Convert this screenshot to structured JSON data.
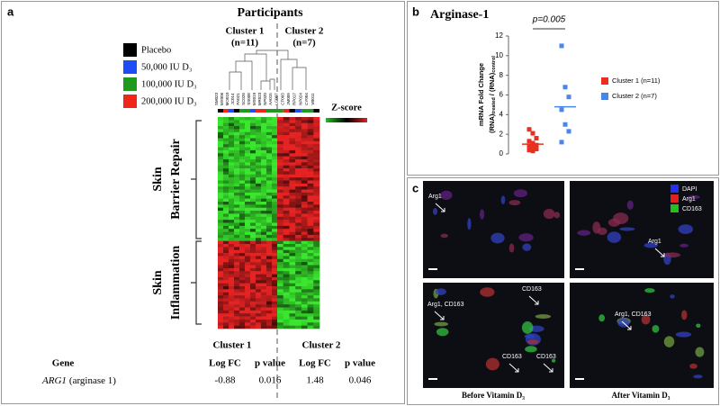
{
  "panel_a": {
    "label": "a",
    "title": "Participants",
    "legend": [
      {
        "name": "Placebo",
        "color": "#000000"
      },
      {
        "name": "50,000 IU D₃",
        "color": "#1f4df5"
      },
      {
        "name": "100,000 IU D₃",
        "color": "#1f9a1f"
      },
      {
        "name": "200,000 IU D₃",
        "color": "#f0261b"
      }
    ],
    "clusters": [
      {
        "name": "Cluster 1",
        "n": "(n=11)"
      },
      {
        "name": "Cluster 2",
        "n": "(n=7)"
      }
    ],
    "sample_ids": [
      [
        "SM023",
        "MX006",
        "MO010",
        "JC014",
        "PA021",
        "SC026",
        "SS008",
        "MS019",
        "MR023",
        "NP020",
        "AA015"
      ],
      [
        "LC007",
        "CT003",
        "JM009",
        "RP017",
        "NP024",
        "CY004",
        "VB011"
      ]
    ],
    "zscore": "Z-score",
    "row_groups": [
      [
        "Skin",
        "Barrier Repair"
      ],
      [
        "Skin",
        "Inflammation"
      ]
    ],
    "table": {
      "clusters": [
        "Cluster 1",
        "Cluster 2"
      ],
      "columns": [
        "Gene",
        "Log FC",
        "p value",
        "Log FC",
        "p value"
      ],
      "rows": [
        {
          "gene": "ARG1",
          "gene_name": "(arginase 1)",
          "values": [
            -0.88,
            0.016,
            1.48,
            0.046
          ]
        }
      ]
    }
  },
  "panel_b": {
    "label": "b",
    "chart_data": {
      "type": "strip",
      "title": "Arginase-1",
      "annotation": "p=0.005",
      "y_label": [
        "mRNA Fold Change",
        "(RNA)",
        "treated",
        " / (RNA)",
        "control"
      ],
      "ylim": [
        0,
        12
      ],
      "yticks": [
        0,
        2,
        4,
        6,
        8,
        10,
        12
      ],
      "series": [
        {
          "name": "Cluster 1 (n=11)",
          "color": "#e8301f",
          "values": [
            2.5,
            2.1,
            1.6,
            1.3,
            1.1,
            0.9,
            0.8,
            0.7,
            0.5,
            0.4,
            0.3
          ],
          "mean": 1.0
        },
        {
          "name": "Cluster 2 (n=7)",
          "color": "#4a86e8",
          "values": [
            11.0,
            6.8,
            5.8,
            4.5,
            3.0,
            2.3,
            1.2
          ],
          "mean": 4.8
        }
      ]
    }
  },
  "panel_c": {
    "label": "c",
    "legend": [
      "DAPI",
      "Arg1",
      "CD163"
    ],
    "image_labels": [
      [
        "Arg1"
      ],
      [
        "Arg1"
      ],
      [
        "Arg1, CD163",
        "CD163",
        "CD163",
        "CD163"
      ],
      [
        "Arg1, CD163"
      ]
    ],
    "captions": [
      "Before Vitamin D₃",
      "After Vitamin D₃"
    ]
  }
}
